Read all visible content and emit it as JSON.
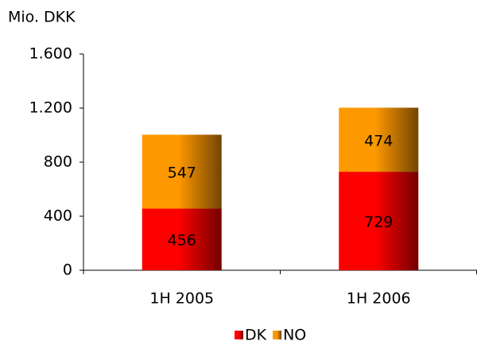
{
  "chart_data": {
    "type": "stacked_bar",
    "y_axis_title": "Mio. DKK",
    "categories": [
      "1H 2005",
      "1H 2006"
    ],
    "series": [
      {
        "name": "DK",
        "color": "#ff0000",
        "values": [
          456,
          729
        ]
      },
      {
        "name": "NO",
        "color": "#ff9900",
        "values": [
          547,
          474
        ]
      }
    ],
    "ylim": [
      0,
      1600
    ],
    "yticks": [
      0,
      400,
      800,
      {
        "value": 1200,
        "label": "1.200"
      },
      {
        "value": 1600,
        "label": "1.600"
      }
    ],
    "legend": "bottom"
  }
}
